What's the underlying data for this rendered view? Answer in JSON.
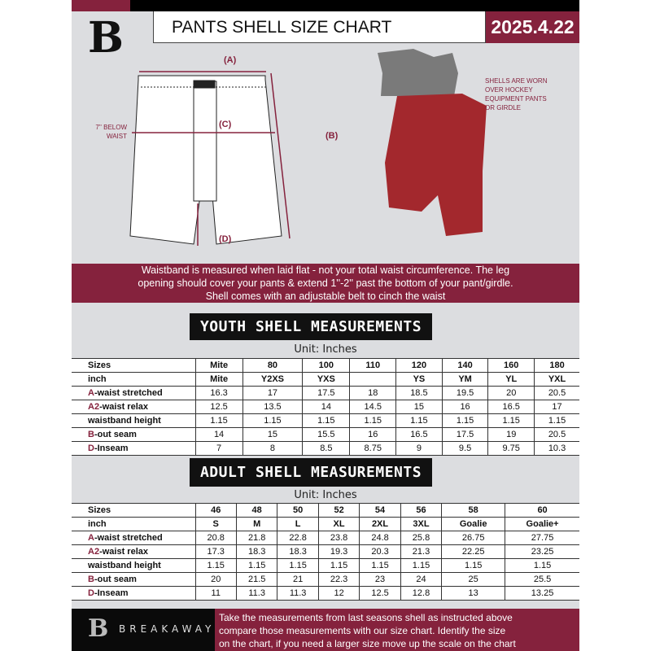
{
  "header": {
    "title": "PANTS SHELL SIZE CHART",
    "date": "2025.4.22",
    "logo_letter": "B"
  },
  "diagram": {
    "label_a": "(A)",
    "label_b": "(B)",
    "label_c": "(C)",
    "label_d": "(D)",
    "below_waist": [
      "7'' BELOW",
      "WAIST"
    ],
    "shell_note": [
      "SHELLS ARE WORN",
      "OVER HOCKEY",
      "EQUIPMENT PANTS",
      "OR GIRDLE"
    ]
  },
  "banner": [
    "Waistband is measured when laid flat - not your total waist circumference. The leg",
    "opening should cover your pants & extend 1''-2'' past the bottom of your pant/girdle.",
    "Shell comes with an adjustable belt to cinch the waist"
  ],
  "youth": {
    "title": "YOUTH SHELL MEASUREMENTS",
    "unit": "Unit: Inches",
    "rows": [
      {
        "prefix": "",
        "label": "Sizes",
        "cells": [
          "Mite",
          "80",
          "100",
          "110",
          "120",
          "140",
          "160",
          "180"
        ]
      },
      {
        "prefix": "",
        "label": "inch",
        "cells": [
          "Mite",
          "Y2XS",
          "YXS",
          "",
          "YS",
          "YM",
          "YL",
          "YXL"
        ]
      },
      {
        "prefix": "A",
        "label": "-waist stretched",
        "cells": [
          "16.3",
          "17",
          "17.5",
          "18",
          "18.5",
          "19.5",
          "20",
          "20.5"
        ]
      },
      {
        "prefix": "A2",
        "label": "-waist relax",
        "cells": [
          "12.5",
          "13.5",
          "14",
          "14.5",
          "15",
          "16",
          "16.5",
          "17"
        ]
      },
      {
        "prefix": "",
        "label": "waistband height",
        "cells": [
          "1.15",
          "1.15",
          "1.15",
          "1.15",
          "1.15",
          "1.15",
          "1.15",
          "1.15"
        ]
      },
      {
        "prefix": "B",
        "label": "-out seam",
        "cells": [
          "14",
          "15",
          "15.5",
          "16",
          "16.5",
          "17.5",
          "19",
          "20.5"
        ]
      },
      {
        "prefix": "D",
        "label": "-Inseam",
        "cells": [
          "7",
          "8",
          "8.5",
          "8.75",
          "9",
          "9.5",
          "9.75",
          "10.3"
        ]
      }
    ]
  },
  "adult": {
    "title": "ADULT SHELL MEASUREMENTS",
    "unit": "Unit: Inches",
    "rows": [
      {
        "prefix": "",
        "label": "Sizes",
        "cells": [
          "46",
          "48",
          "50",
          "52",
          "54",
          "56",
          "58",
          "60"
        ]
      },
      {
        "prefix": "",
        "label": "inch",
        "cells": [
          "S",
          "M",
          "L",
          "XL",
          "2XL",
          "3XL",
          "Goalie",
          "Goalie+"
        ]
      },
      {
        "prefix": "A",
        "label": "-waist stretched",
        "cells": [
          "20.8",
          "21.8",
          "22.8",
          "23.8",
          "24.8",
          "25.8",
          "26.75",
          "27.75"
        ]
      },
      {
        "prefix": "A2",
        "label": "-waist relax",
        "cells": [
          "17.3",
          "18.3",
          "18.3",
          "19.3",
          "20.3",
          "21.3",
          "22.25",
          "23.25"
        ]
      },
      {
        "prefix": "",
        "label": "waistband height",
        "cells": [
          "1.15",
          "1.15",
          "1.15",
          "1.15",
          "1.15",
          "1.15",
          "1.15",
          "1.15"
        ]
      },
      {
        "prefix": "B",
        "label": "-out seam",
        "cells": [
          "20",
          "21.5",
          "21",
          "22.3",
          "23",
          "24",
          "25",
          "25.5"
        ]
      },
      {
        "prefix": "D",
        "label": "-Inseam",
        "cells": [
          "11",
          "11.3",
          "11.3",
          "12",
          "12.5",
          "12.8",
          "13",
          "13.25"
        ]
      }
    ]
  },
  "footer": {
    "brand": "BREAKAWAY",
    "text": [
      "Take the measurements from last seasons shell as instructed above",
      "compare those measurements  with our size chart. Identify the size",
      "on the chart, if you need a larger size move up the scale on the chart"
    ]
  },
  "colors": {
    "accent": "#85223d",
    "background": "#dcdde0"
  }
}
